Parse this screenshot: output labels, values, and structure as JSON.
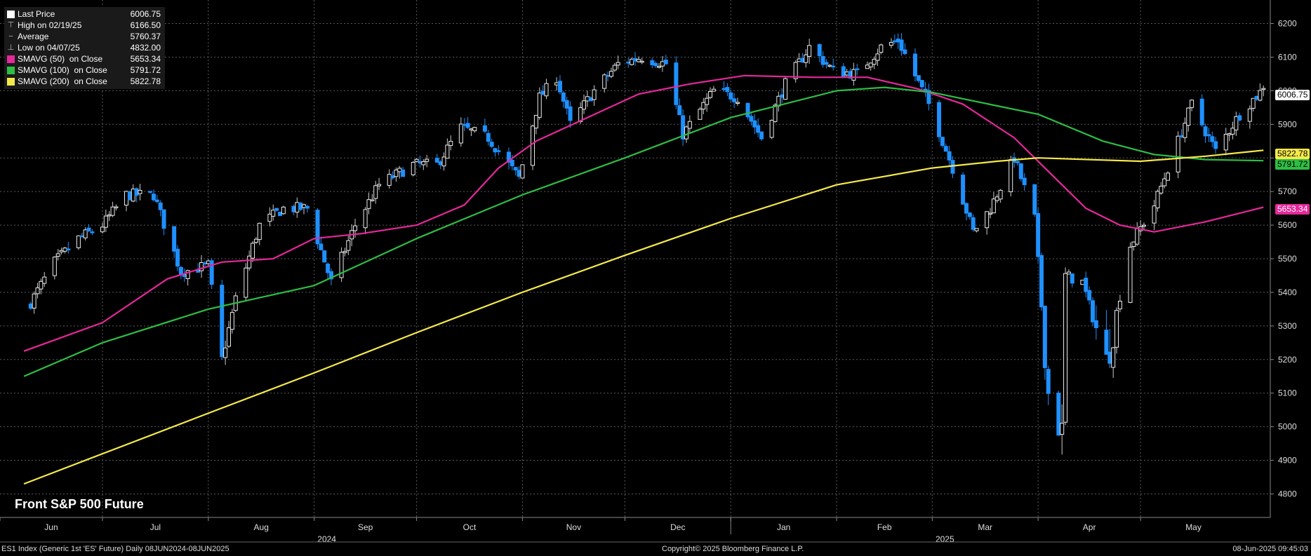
{
  "legend": {
    "last_price_label": "Last Price",
    "last_price_value": "6006.75",
    "high_label": "High on 02/19/25",
    "high_value": "6166.50",
    "average_label": "Average",
    "average_value": "5760.37",
    "low_label": "Low on 04/07/25",
    "low_value": "4832.00",
    "sma50_label": "SMAVG (50)  on Close",
    "sma50_value": "5653.34",
    "sma100_label": "SMAVG (100)  on Close",
    "sma100_value": "5791.72",
    "sma200_label": "SMAVG (200)  on Close",
    "sma200_value": "5822.78"
  },
  "colors": {
    "up_candle": "#ffffff",
    "down_candle": "#1e90ff",
    "sma50": "#e5289a",
    "sma100": "#2ebd45",
    "sma200": "#f5e94a",
    "grid": "#5a5a5a",
    "background": "#000000"
  },
  "title": "Front S&P 500 Future",
  "footer": {
    "left": "ES1 Index (Generic 1st 'ES' Future)  Daily 08JUN2024-08JUN2025",
    "center": "Copyright© 2025 Bloomberg Finance L.P.",
    "right": "08-Jun-2025 09:45:03"
  },
  "price_tags": {
    "last": "6006.75",
    "sma200": "5822.78",
    "sma100": "5791.72",
    "sma50": "5653.34"
  },
  "chart_data": {
    "type": "candlestick",
    "title": "Front S&P 500 Future",
    "ylim": [
      4730,
      6270
    ],
    "y_ticks": [
      4800,
      4900,
      5000,
      5100,
      5200,
      5300,
      5400,
      5500,
      5600,
      5700,
      5800,
      5900,
      6000,
      6100,
      6200
    ],
    "x_range": [
      "2024-06-08",
      "2025-06-08"
    ],
    "month_ticks": [
      {
        "label": "Jun",
        "date": "2024-06-01"
      },
      {
        "label": "Jul",
        "date": "2024-07-01"
      },
      {
        "label": "Aug",
        "date": "2024-08-01"
      },
      {
        "label": "Sep",
        "date": "2024-09-01"
      },
      {
        "label": "Oct",
        "date": "2024-10-01"
      },
      {
        "label": "Nov",
        "date": "2024-11-01"
      },
      {
        "label": "Dec",
        "date": "2024-12-01"
      },
      {
        "label": "Jan",
        "date": "2025-01-01"
      },
      {
        "label": "Feb",
        "date": "2025-02-01"
      },
      {
        "label": "Mar",
        "date": "2025-03-01"
      },
      {
        "label": "Apr",
        "date": "2025-04-01"
      },
      {
        "label": "May",
        "date": "2025-05-01"
      }
    ],
    "year_labels": [
      {
        "label": "2024",
        "date": "2024-09-01"
      },
      {
        "label": "2025",
        "date": "2025-03-01"
      }
    ],
    "price_anchors": [
      [
        "2024-06-10",
        5370
      ],
      [
        "2024-06-17",
        5490
      ],
      [
        "2024-06-24",
        5560
      ],
      [
        "2024-07-01",
        5600
      ],
      [
        "2024-07-08",
        5690
      ],
      [
        "2024-07-16",
        5690
      ],
      [
        "2024-07-24",
        5460
      ],
      [
        "2024-08-01",
        5480
      ],
      [
        "2024-08-05",
        5200
      ],
      [
        "2024-08-09",
        5380
      ],
      [
        "2024-08-16",
        5600
      ],
      [
        "2024-08-23",
        5650
      ],
      [
        "2024-08-30",
        5650
      ],
      [
        "2024-09-06",
        5430
      ],
      [
        "2024-09-13",
        5600
      ],
      [
        "2024-09-20",
        5720
      ],
      [
        "2024-09-30",
        5780
      ],
      [
        "2024-10-07",
        5780
      ],
      [
        "2024-10-14",
        5890
      ],
      [
        "2024-10-22",
        5860
      ],
      [
        "2024-10-31",
        5740
      ],
      [
        "2024-11-06",
        5980
      ],
      [
        "2024-11-11",
        6040
      ],
      [
        "2024-11-15",
        5900
      ],
      [
        "2024-11-22",
        6000
      ],
      [
        "2024-11-29",
        6080
      ],
      [
        "2024-12-06",
        6100
      ],
      [
        "2024-12-13",
        6080
      ],
      [
        "2024-12-18",
        5870
      ],
      [
        "2024-12-27",
        6000
      ],
      [
        "2025-01-03",
        5980
      ],
      [
        "2025-01-10",
        5860
      ],
      [
        "2025-01-17",
        6020
      ],
      [
        "2025-01-24",
        6130
      ],
      [
        "2025-01-31",
        6060
      ],
      [
        "2025-02-07",
        6050
      ],
      [
        "2025-02-14",
        6130
      ],
      [
        "2025-02-19",
        6150
      ],
      [
        "2025-02-28",
        5960
      ],
      [
        "2025-03-07",
        5770
      ],
      [
        "2025-03-13",
        5580
      ],
      [
        "2025-03-18",
        5650
      ],
      [
        "2025-03-25",
        5800
      ],
      [
        "2025-03-31",
        5620
      ],
      [
        "2025-04-04",
        5100
      ],
      [
        "2025-04-08",
        4980
      ],
      [
        "2025-04-09",
        5450
      ],
      [
        "2025-04-14",
        5430
      ],
      [
        "2025-04-21",
        5190
      ],
      [
        "2025-04-28",
        5540
      ],
      [
        "2025-05-05",
        5660
      ],
      [
        "2025-05-12",
        5850
      ],
      [
        "2025-05-16",
        5960
      ],
      [
        "2025-05-23",
        5820
      ],
      [
        "2025-05-30",
        5930
      ],
      [
        "2025-06-06",
        6006.75
      ]
    ],
    "series": [
      {
        "name": "SMAVG (50)  on Close",
        "color": "#e5289a",
        "last": 5653.34,
        "points": [
          [
            "2024-06-08",
            5225
          ],
          [
            "2024-07-01",
            5310
          ],
          [
            "2024-07-20",
            5440
          ],
          [
            "2024-08-05",
            5490
          ],
          [
            "2024-08-20",
            5500
          ],
          [
            "2024-09-01",
            5560
          ],
          [
            "2024-09-15",
            5575
          ],
          [
            "2024-10-01",
            5600
          ],
          [
            "2024-10-15",
            5660
          ],
          [
            "2024-10-25",
            5770
          ],
          [
            "2024-11-05",
            5850
          ],
          [
            "2024-11-20",
            5920
          ],
          [
            "2024-12-05",
            5990
          ],
          [
            "2024-12-20",
            6020
          ],
          [
            "2025-01-05",
            6045
          ],
          [
            "2025-01-25",
            6040
          ],
          [
            "2025-02-10",
            6040
          ],
          [
            "2025-02-25",
            6005
          ],
          [
            "2025-03-10",
            5960
          ],
          [
            "2025-03-25",
            5860
          ],
          [
            "2025-04-05",
            5750
          ],
          [
            "2025-04-15",
            5650
          ],
          [
            "2025-04-25",
            5600
          ],
          [
            "2025-05-05",
            5580
          ],
          [
            "2025-05-20",
            5610
          ],
          [
            "2025-06-06",
            5653.34
          ]
        ]
      },
      {
        "name": "SMAVG (100)  on Close",
        "color": "#2ebd45",
        "last": 5791.72,
        "points": [
          [
            "2024-06-08",
            5150
          ],
          [
            "2024-07-01",
            5250
          ],
          [
            "2024-08-01",
            5350
          ],
          [
            "2024-09-01",
            5420
          ],
          [
            "2024-10-01",
            5560
          ],
          [
            "2024-11-01",
            5690
          ],
          [
            "2024-12-01",
            5800
          ],
          [
            "2025-01-01",
            5920
          ],
          [
            "2025-02-01",
            6000
          ],
          [
            "2025-02-15",
            6010
          ],
          [
            "2025-03-01",
            5995
          ],
          [
            "2025-03-20",
            5955
          ],
          [
            "2025-04-01",
            5930
          ],
          [
            "2025-04-20",
            5850
          ],
          [
            "2025-05-05",
            5810
          ],
          [
            "2025-05-20",
            5795
          ],
          [
            "2025-06-06",
            5791.72
          ]
        ]
      },
      {
        "name": "SMAVG (200)  on Close",
        "color": "#f5e94a",
        "last": 5822.78,
        "points": [
          [
            "2024-06-08",
            4830
          ],
          [
            "2024-08-01",
            5040
          ],
          [
            "2024-09-01",
            5160
          ],
          [
            "2024-10-01",
            5280
          ],
          [
            "2024-11-01",
            5400
          ],
          [
            "2024-12-01",
            5510
          ],
          [
            "2025-01-01",
            5620
          ],
          [
            "2025-02-01",
            5720
          ],
          [
            "2025-03-01",
            5770
          ],
          [
            "2025-03-20",
            5790
          ],
          [
            "2025-04-01",
            5800
          ],
          [
            "2025-05-01",
            5790
          ],
          [
            "2025-05-20",
            5805
          ],
          [
            "2025-06-06",
            5822.78
          ]
        ]
      }
    ]
  }
}
